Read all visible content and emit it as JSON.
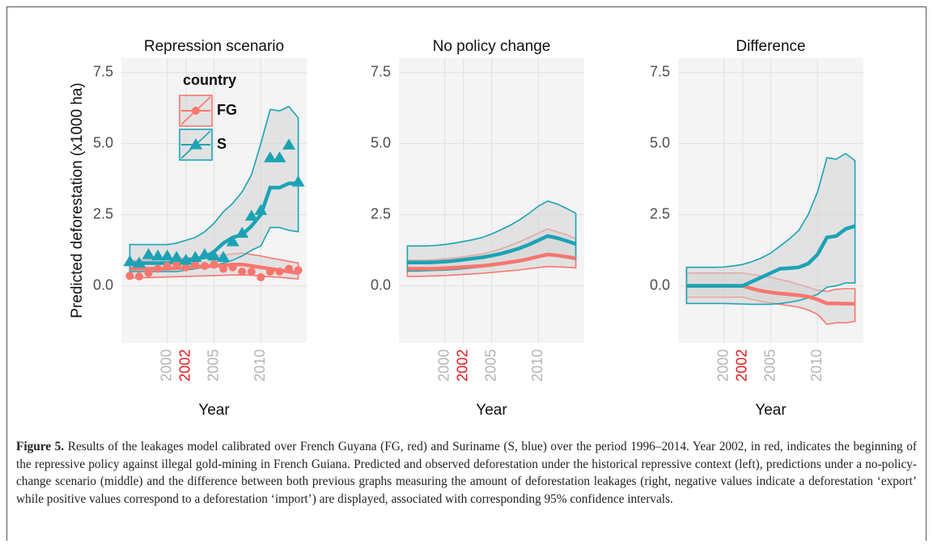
{
  "chart_data": [
    {
      "type": "line",
      "title": "Repression scenario",
      "ylabel": "Predicted deforestation (x1000 ha)",
      "xlabel": "Year",
      "x": [
        1996,
        1997,
        1998,
        1999,
        2000,
        2001,
        2002,
        2003,
        2004,
        2005,
        2006,
        2007,
        2008,
        2009,
        2010,
        2011,
        2012,
        2013,
        2014
      ],
      "xlim": [
        1995.1,
        2014.9
      ],
      "xticks": [
        2000,
        2002,
        2005,
        2010
      ],
      "xtick_colors": [
        "#b3b3b3",
        "#e41a1c",
        "#b3b3b3",
        "#b3b3b3"
      ],
      "ylim": [
        -2.0,
        8.0
      ],
      "yticks": [
        {
          "value": 0,
          "label": "0.0"
        },
        2.5,
        {
          "value": 5,
          "label": "5.0"
        },
        7.5
      ],
      "grid": true,
      "legend": "top-left",
      "legend_title": "country",
      "series": [
        {
          "name": "FG",
          "color": "#f8766d",
          "marker": "circle",
          "values": [
            0.6,
            0.6,
            0.6,
            0.6,
            0.6,
            0.62,
            0.64,
            0.66,
            0.68,
            0.7,
            0.72,
            0.75,
            0.75,
            0.7,
            0.65,
            0.6,
            0.55,
            0.5,
            0.45
          ],
          "lower": [
            0.28,
            0.28,
            0.29,
            0.3,
            0.31,
            0.32,
            0.33,
            0.34,
            0.35,
            0.36,
            0.37,
            0.38,
            0.38,
            0.37,
            0.35,
            0.32,
            0.3,
            0.27,
            0.24
          ],
          "upper": [
            0.9,
            0.9,
            0.91,
            0.92,
            0.94,
            0.96,
            0.98,
            1.0,
            1.02,
            1.05,
            1.08,
            1.12,
            1.15,
            1.1,
            1.05,
            0.98,
            0.92,
            0.86,
            0.8
          ],
          "observed": [
            0.35,
            0.33,
            0.45,
            0.6,
            0.7,
            0.75,
            0.65,
            0.75,
            0.7,
            0.75,
            0.6,
            0.65,
            0.5,
            0.5,
            0.3,
            0.5,
            0.5,
            0.6,
            0.55
          ]
        },
        {
          "name": "S",
          "color": "#1ba3b5",
          "marker": "triangle",
          "values": [
            0.8,
            0.8,
            0.8,
            0.8,
            0.8,
            0.85,
            0.9,
            0.95,
            1.0,
            1.2,
            1.5,
            1.7,
            1.8,
            2.1,
            2.5,
            3.45,
            3.45,
            3.6,
            3.6
          ],
          "lower": [
            0.5,
            0.5,
            0.5,
            0.5,
            0.5,
            0.5,
            0.55,
            0.6,
            0.65,
            0.7,
            0.8,
            0.9,
            1.05,
            1.25,
            1.4,
            2.05,
            2.05,
            1.95,
            1.9
          ],
          "upper": [
            1.45,
            1.45,
            1.45,
            1.45,
            1.45,
            1.5,
            1.6,
            1.7,
            1.9,
            2.2,
            2.6,
            2.9,
            3.3,
            3.9,
            5.0,
            6.2,
            6.15,
            6.3,
            5.9
          ],
          "observed": [
            0.85,
            0.8,
            1.1,
            1.05,
            1.05,
            1.0,
            0.9,
            1.0,
            1.1,
            1.05,
            1.0,
            1.55,
            1.85,
            2.45,
            2.65,
            4.5,
            4.5,
            4.95,
            3.65
          ]
        }
      ]
    },
    {
      "type": "line",
      "title": "No policy change",
      "xlabel": "Year",
      "x": [
        1996,
        1997,
        1998,
        1999,
        2000,
        2001,
        2002,
        2003,
        2004,
        2005,
        2006,
        2007,
        2008,
        2009,
        2010,
        2011,
        2012,
        2013,
        2014
      ],
      "xlim": [
        1995.1,
        2014.9
      ],
      "xticks": [
        2000,
        2002,
        2005,
        2010
      ],
      "xtick_colors": [
        "#b3b3b3",
        "#e41a1c",
        "#b3b3b3",
        "#b3b3b3"
      ],
      "ylim": [
        -2.0,
        8.0
      ],
      "yticks": [
        {
          "value": 0,
          "label": "0.0"
        },
        2.5,
        {
          "value": 5,
          "label": "5.0"
        },
        7.5
      ],
      "grid": true,
      "series": [
        {
          "name": "FG",
          "color": "#f8766d",
          "values": [
            0.6,
            0.6,
            0.6,
            0.6,
            0.62,
            0.64,
            0.66,
            0.68,
            0.7,
            0.74,
            0.78,
            0.83,
            0.88,
            0.95,
            1.03,
            1.1,
            1.07,
            1.02,
            0.97
          ],
          "lower": [
            0.33,
            0.33,
            0.34,
            0.35,
            0.36,
            0.38,
            0.4,
            0.42,
            0.44,
            0.47,
            0.5,
            0.53,
            0.56,
            0.6,
            0.64,
            0.68,
            0.67,
            0.65,
            0.63
          ],
          "upper": [
            0.9,
            0.9,
            0.9,
            0.92,
            0.95,
            0.98,
            1.02,
            1.07,
            1.12,
            1.2,
            1.3,
            1.42,
            1.55,
            1.7,
            1.85,
            2.0,
            1.9,
            1.8,
            1.65
          ]
        },
        {
          "name": "S",
          "color": "#1ba3b5",
          "values": [
            0.82,
            0.82,
            0.82,
            0.83,
            0.85,
            0.88,
            0.92,
            0.96,
            1.0,
            1.06,
            1.13,
            1.22,
            1.32,
            1.45,
            1.6,
            1.75,
            1.68,
            1.58,
            1.47
          ],
          "lower": [
            0.52,
            0.52,
            0.53,
            0.54,
            0.55,
            0.57,
            0.6,
            0.63,
            0.66,
            0.7,
            0.75,
            0.8,
            0.86,
            0.93,
            1.0,
            1.07,
            1.03,
            0.98,
            0.92
          ],
          "upper": [
            1.4,
            1.4,
            1.4,
            1.42,
            1.45,
            1.5,
            1.56,
            1.62,
            1.7,
            1.82,
            1.97,
            2.13,
            2.32,
            2.55,
            2.8,
            2.98,
            2.88,
            2.72,
            2.55
          ]
        }
      ]
    },
    {
      "type": "line",
      "title": "Difference",
      "xlabel": "Year",
      "x": [
        1996,
        1997,
        1998,
        1999,
        2000,
        2001,
        2002,
        2003,
        2004,
        2005,
        2006,
        2007,
        2008,
        2009,
        2010,
        2011,
        2012,
        2013,
        2014
      ],
      "xlim": [
        1995.1,
        2014.9
      ],
      "xticks": [
        2000,
        2002,
        2005,
        2010
      ],
      "xtick_colors": [
        "#b3b3b3",
        "#e41a1c",
        "#b3b3b3",
        "#b3b3b3"
      ],
      "ylim": [
        -2.0,
        8.0
      ],
      "yticks": [
        {
          "value": 0,
          "label": "0.0"
        },
        2.5,
        {
          "value": 5,
          "label": "5.0"
        },
        7.5
      ],
      "grid": true,
      "series": [
        {
          "name": "FG",
          "color": "#f8766d",
          "values": [
            0,
            0,
            0,
            0,
            0,
            0,
            0,
            -0.1,
            -0.18,
            -0.23,
            -0.27,
            -0.3,
            -0.33,
            -0.38,
            -0.48,
            -0.62,
            -0.62,
            -0.63,
            -0.63
          ],
          "lower": [
            -0.4,
            -0.4,
            -0.4,
            -0.4,
            -0.4,
            -0.4,
            -0.4,
            -0.48,
            -0.55,
            -0.6,
            -0.65,
            -0.7,
            -0.75,
            -0.85,
            -1.0,
            -1.35,
            -1.3,
            -1.3,
            -1.25
          ],
          "upper": [
            0.45,
            0.45,
            0.45,
            0.45,
            0.45,
            0.45,
            0.45,
            0.4,
            0.35,
            0.3,
            0.22,
            0.15,
            0.05,
            -0.05,
            -0.15,
            -0.2,
            -0.12,
            -0.1,
            -0.1
          ]
        },
        {
          "name": "S",
          "color": "#1ba3b5",
          "values": [
            0,
            0,
            0,
            0,
            0,
            0,
            0,
            0.15,
            0.3,
            0.45,
            0.6,
            0.62,
            0.65,
            0.78,
            1.1,
            1.7,
            1.75,
            2.0,
            2.1
          ],
          "lower": [
            -0.62,
            -0.62,
            -0.62,
            -0.62,
            -0.62,
            -0.63,
            -0.64,
            -0.65,
            -0.65,
            -0.65,
            -0.62,
            -0.58,
            -0.52,
            -0.42,
            -0.3,
            -0.05,
            0,
            0.1,
            0.1
          ],
          "upper": [
            0.65,
            0.65,
            0.65,
            0.65,
            0.66,
            0.7,
            0.75,
            0.85,
            0.98,
            1.15,
            1.4,
            1.65,
            1.95,
            2.5,
            3.3,
            4.5,
            4.45,
            4.65,
            4.4
          ]
        }
      ]
    }
  ],
  "caption": {
    "label": "Figure 5.",
    "text": "Results of the leakages model calibrated over French Guyana (FG, red) and Suriname (S, blue) over the period 1996–2014. Year 2002, in red, indicates the beginning of the repressive policy against illegal gold-mining in French Guiana. Predicted and observed deforestation under the historical repressive context (left), predictions under a no-policy-change scenario (middle) and the difference between both previous graphs measuring the amount of deforestation leakages (right, negative values indicate a deforestation ‘export’ while positive values correspond to a deforestation ‘import’) are displayed, associated with corresponding 95% confidence intervals."
  }
}
